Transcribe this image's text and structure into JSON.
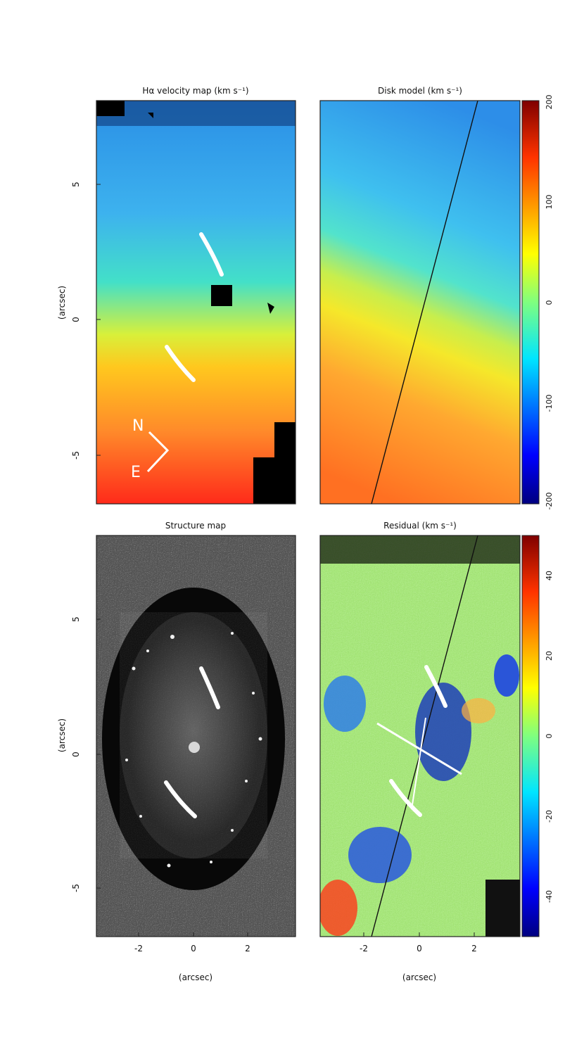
{
  "figure": {
    "caption_word_arcsec": "(arcsec)"
  },
  "chart_data": [
    {
      "type": "heatmap",
      "title": "Hα velocity map (km s⁻¹)",
      "ylabel": "(arcsec)",
      "xlabel": "",
      "xlim": [
        -3.7,
        3.7
      ],
      "ylim": [
        -7.3,
        7.8
      ],
      "yticks": [
        -5,
        0,
        5
      ],
      "xticks": [],
      "annotations": [
        "N",
        "E"
      ],
      "colormap": "jet",
      "color_range_kms": [
        -200,
        200
      ]
    },
    {
      "type": "heatmap",
      "title": "Disk model (km s⁻¹)",
      "xlim": [
        -3.7,
        3.7
      ],
      "ylim": [
        -7.3,
        7.8
      ],
      "colorbar": {
        "ticks": [
          -200,
          -100,
          0,
          100,
          200
        ],
        "range": [
          -200,
          200
        ]
      },
      "major_axis_line": [
        [
          -1.8,
          -7.3
        ],
        [
          2.1,
          7.8
        ]
      ]
    },
    {
      "type": "heatmap",
      "title": "Structure map",
      "ylabel": "(arcsec)",
      "xlabel": "(arcsec)",
      "xlim": [
        -3.7,
        3.7
      ],
      "ylim": [
        -7.3,
        7.8
      ],
      "xticks": [
        -2,
        0,
        2
      ],
      "yticks": [
        -5,
        0,
        5
      ],
      "colormap": "gray"
    },
    {
      "type": "heatmap",
      "title": "Residual (km s⁻¹)",
      "xlabel": "(arcsec)",
      "xlim": [
        -3.7,
        3.7
      ],
      "ylim": [
        -7.3,
        7.8
      ],
      "xticks": [
        -2,
        0,
        2
      ],
      "colorbar": {
        "ticks": [
          -40,
          -20,
          0,
          20,
          40
        ],
        "range": [
          -50,
          50
        ]
      },
      "major_axis_line": [
        [
          -1.8,
          -7.3
        ],
        [
          2.1,
          7.8
        ]
      ]
    }
  ]
}
